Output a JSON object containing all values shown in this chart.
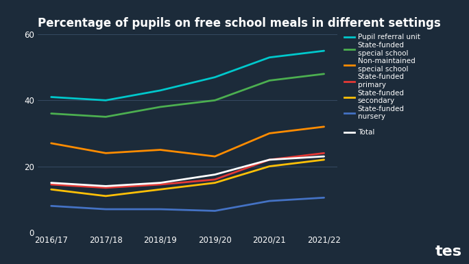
{
  "title": "Percentage of pupils on free school meals in different settings",
  "background_color": "#1c2b3a",
  "text_color": "#ffffff",
  "grid_color": "#3a5068",
  "years": [
    "2016/17",
    "2017/18",
    "2018/19",
    "2019/20",
    "2020/21",
    "2021/22"
  ],
  "series": [
    {
      "label": "Pupil referral unit",
      "color": "#00c8cc",
      "values": [
        41,
        40,
        43,
        47,
        53,
        55
      ]
    },
    {
      "label": "State-funded\nspecial school",
      "color": "#4caf50",
      "values": [
        36,
        35,
        38,
        40,
        46,
        48
      ]
    },
    {
      "label": "Non-maintained\nspecial school",
      "color": "#ff8c00",
      "values": [
        27,
        24,
        25,
        23,
        30,
        32
      ]
    },
    {
      "label": "State-funded\nprimary",
      "color": "#e53935",
      "values": [
        14.5,
        13.5,
        14.5,
        16,
        22,
        24
      ]
    },
    {
      "label": "State-funded\nsecondary",
      "color": "#ffc107",
      "values": [
        13,
        11,
        13,
        15,
        20,
        22
      ]
    },
    {
      "label": "State-funded\nnursery",
      "color": "#4472c4",
      "values": [
        8,
        7,
        7,
        6.5,
        9.5,
        10.5
      ]
    },
    {
      "label": "Total",
      "color": "#ffffff",
      "values": [
        15,
        14,
        15,
        17.5,
        22,
        23
      ]
    }
  ],
  "ylim": [
    0,
    60
  ],
  "yticks": [
    0,
    20,
    40,
    60
  ],
  "legend_entries": [
    {
      "label": "Pupil referral unit",
      "color": "#00c8cc"
    },
    {
      "label": "State-funded\nspecial school",
      "color": "#4caf50"
    },
    {
      "label": "Non-maintained\nspecial school",
      "color": "#ff8c00"
    },
    {
      "label": "State-funded\nprimary",
      "color": "#e53935"
    },
    {
      "label": "State-funded\nsecondary",
      "color": "#ffc107"
    },
    {
      "label": "State-funded\nnursery",
      "color": "#4472c4"
    },
    {
      "label": "",
      "color": null
    },
    {
      "label": "Total",
      "color": "#ffffff"
    }
  ]
}
